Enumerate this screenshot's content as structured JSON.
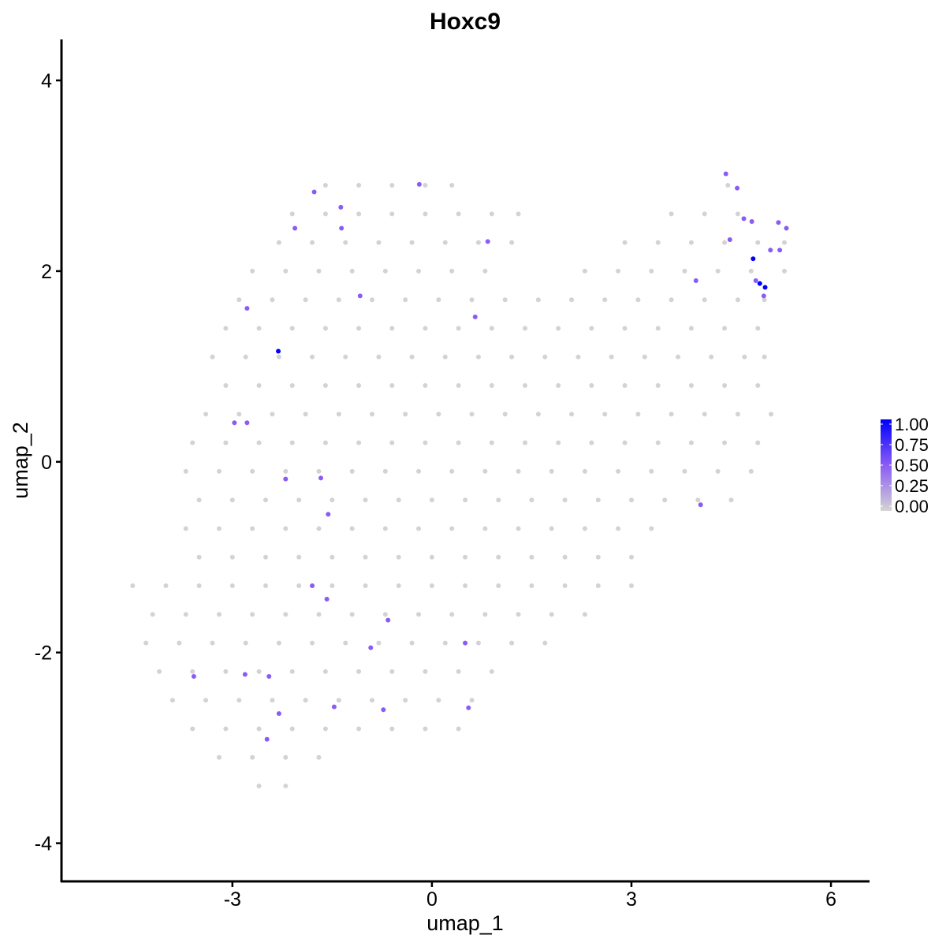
{
  "chart_data": {
    "type": "scatter",
    "title": "Hoxc9",
    "xlabel": "umap_1",
    "ylabel": "umap_2",
    "xlim": [
      -5.57,
      6.58
    ],
    "ylim": [
      -4.4,
      4.43
    ],
    "xticks": [
      -3,
      0,
      3,
      6
    ],
    "yticks": [
      -4,
      -2,
      0,
      2,
      4
    ],
    "xtick_labels": [
      "-3",
      "0",
      "3",
      "6"
    ],
    "ytick_labels": [
      "-4",
      "-2",
      "0",
      "2",
      "4"
    ],
    "grid": false,
    "legend": {
      "placement": "right",
      "type": "colorbar",
      "labels": [
        "1.00",
        "0.75",
        "0.50",
        "0.25",
        "0.00"
      ],
      "range": [
        0,
        1
      ]
    },
    "color_scale": {
      "low": "#D3D3D3",
      "mid": "#8A5CF5",
      "high": "#0000FF"
    },
    "background_point_rows": [
      {
        "y": 2.9,
        "x": [
          -1.6,
          -1.1,
          -0.6,
          -0.1,
          0.3,
          4.45
        ]
      },
      {
        "y": 2.6,
        "x": [
          -2.1,
          -1.6,
          -1.1,
          -0.6,
          -0.1,
          0.4,
          0.9,
          1.3,
          3.6,
          4.1,
          4.6
        ]
      },
      {
        "y": 2.3,
        "x": [
          -2.3,
          -1.8,
          -1.3,
          -0.8,
          -0.3,
          0.2,
          0.7,
          1.2,
          2.9,
          3.4,
          3.9,
          4.4,
          4.9,
          5.3
        ]
      },
      {
        "y": 2.0,
        "x": [
          -2.7,
          -2.2,
          -1.7,
          -1.2,
          -0.7,
          -0.2,
          0.3,
          0.8,
          2.3,
          2.8,
          3.3,
          3.8,
          4.3,
          4.8,
          5.3
        ]
      },
      {
        "y": 1.7,
        "x": [
          -2.9,
          -2.4,
          -1.9,
          -1.4,
          -0.9,
          -0.4,
          0.1,
          0.6,
          1.1,
          1.6,
          2.1,
          2.6,
          3.1,
          3.6,
          4.1,
          4.6,
          5.0
        ]
      },
      {
        "y": 1.4,
        "x": [
          -3.1,
          -2.6,
          -2.1,
          -1.6,
          -1.1,
          -0.6,
          -0.1,
          0.4,
          0.9,
          1.4,
          1.9,
          2.4,
          2.9,
          3.4,
          3.9,
          4.4,
          4.9
        ]
      },
      {
        "y": 1.1,
        "x": [
          -3.3,
          -2.8,
          -2.3,
          -1.8,
          -1.3,
          -0.8,
          -0.3,
          0.2,
          0.7,
          1.2,
          1.7,
          2.2,
          2.7,
          3.2,
          3.7,
          4.2,
          4.7,
          5.0
        ]
      },
      {
        "y": 0.8,
        "x": [
          -3.1,
          -2.6,
          -2.1,
          -1.6,
          -1.1,
          -0.6,
          -0.1,
          0.4,
          0.9,
          1.4,
          1.9,
          2.4,
          2.9,
          3.4,
          3.9,
          4.4,
          4.9
        ]
      },
      {
        "y": 0.5,
        "x": [
          -3.4,
          -2.9,
          -2.4,
          -1.9,
          -1.4,
          -0.9,
          -0.4,
          0.1,
          0.6,
          1.1,
          1.6,
          2.1,
          2.6,
          3.1,
          3.6,
          4.1,
          4.6,
          5.1
        ]
      },
      {
        "y": 0.2,
        "x": [
          -3.6,
          -3.1,
          -2.6,
          -2.1,
          -1.6,
          -1.1,
          -0.6,
          -0.1,
          0.4,
          0.9,
          1.4,
          1.9,
          2.4,
          2.9,
          3.4,
          3.9,
          4.4,
          4.9
        ]
      },
      {
        "y": -0.1,
        "x": [
          -3.7,
          -3.2,
          -2.7,
          -2.2,
          -1.7,
          -1.2,
          -0.7,
          -0.2,
          0.3,
          0.8,
          1.3,
          1.8,
          2.3,
          2.8,
          3.3,
          3.8,
          4.3,
          4.8
        ]
      },
      {
        "y": -0.4,
        "x": [
          -3.5,
          -3.0,
          -2.5,
          -2.0,
          -1.5,
          -1.0,
          -0.5,
          0.0,
          0.5,
          1.0,
          1.5,
          2.0,
          2.5,
          3.0,
          3.5,
          4.0,
          4.5
        ]
      },
      {
        "y": -0.7,
        "x": [
          -3.7,
          -3.2,
          -2.7,
          -2.2,
          -1.7,
          -1.2,
          -0.7,
          -0.2,
          0.3,
          0.8,
          1.3,
          1.8,
          2.3,
          2.8,
          3.3
        ]
      },
      {
        "y": -1.0,
        "x": [
          -3.5,
          -3.0,
          -2.5,
          -2.0,
          -1.5,
          -1.0,
          -0.5,
          0.0,
          0.5,
          1.0,
          1.5,
          2.0,
          2.5,
          3.0
        ]
      },
      {
        "y": -1.3,
        "x": [
          -4.5,
          -4.0,
          -3.5,
          -3.0,
          -2.5,
          -2.0,
          -1.5,
          -1.0,
          -0.5,
          0.0,
          0.5,
          1.0,
          1.5,
          2.0,
          2.5,
          3.0
        ]
      },
      {
        "y": -1.6,
        "x": [
          -4.2,
          -3.7,
          -3.2,
          -2.7,
          -2.2,
          -1.7,
          -1.2,
          -0.7,
          -0.2,
          0.3,
          0.8,
          1.3,
          1.8,
          2.3
        ]
      },
      {
        "y": -1.9,
        "x": [
          -4.3,
          -3.8,
          -3.3,
          -2.8,
          -2.3,
          -1.8,
          -1.3,
          -0.8,
          -0.3,
          0.2,
          0.7,
          1.2,
          1.7
        ]
      },
      {
        "y": -2.2,
        "x": [
          -4.1,
          -3.6,
          -3.1,
          -2.6,
          -2.1,
          -1.6,
          -1.1,
          -0.6,
          -0.1,
          0.4,
          0.9
        ]
      },
      {
        "y": -2.5,
        "x": [
          -3.9,
          -3.4,
          -2.9,
          -2.4,
          -1.9,
          -1.4,
          -0.9,
          -0.4,
          0.1,
          0.6
        ]
      },
      {
        "y": -2.8,
        "x": [
          -3.6,
          -3.1,
          -2.6,
          -2.1,
          -1.6,
          -1.1,
          -0.6,
          -0.1,
          0.4
        ]
      },
      {
        "y": -3.1,
        "x": [
          -3.2,
          -2.7,
          -2.2,
          -1.7
        ]
      },
      {
        "y": -3.4,
        "x": [
          -2.6,
          -2.2
        ]
      }
    ],
    "expressing_points": [
      {
        "x": -1.77,
        "y": 2.83,
        "value": 0.5
      },
      {
        "x": -1.37,
        "y": 2.67,
        "value": 0.5
      },
      {
        "x": -1.36,
        "y": 2.45,
        "value": 0.5
      },
      {
        "x": -2.06,
        "y": 2.45,
        "value": 0.5
      },
      {
        "x": -0.19,
        "y": 2.91,
        "value": 0.5
      },
      {
        "x": 0.84,
        "y": 2.31,
        "value": 0.5
      },
      {
        "x": -1.08,
        "y": 1.74,
        "value": 0.5
      },
      {
        "x": -2.78,
        "y": 1.61,
        "value": 0.5
      },
      {
        "x": 0.65,
        "y": 1.52,
        "value": 0.5
      },
      {
        "x": -2.31,
        "y": 1.16,
        "value": 1.0
      },
      {
        "x": -2.97,
        "y": 0.41,
        "value": 0.5
      },
      {
        "x": -2.78,
        "y": 0.41,
        "value": 0.5
      },
      {
        "x": -2.2,
        "y": -0.18,
        "value": 0.5
      },
      {
        "x": -1.67,
        "y": -0.17,
        "value": 0.5
      },
      {
        "x": -1.56,
        "y": -0.55,
        "value": 0.5
      },
      {
        "x": 4.04,
        "y": -0.45,
        "value": 0.5
      },
      {
        "x": -1.8,
        "y": -1.3,
        "value": 0.5
      },
      {
        "x": -1.58,
        "y": -1.44,
        "value": 0.5
      },
      {
        "x": -0.66,
        "y": -1.66,
        "value": 0.5
      },
      {
        "x": -0.92,
        "y": -1.95,
        "value": 0.5
      },
      {
        "x": 0.5,
        "y": -1.9,
        "value": 0.5
      },
      {
        "x": -3.58,
        "y": -2.25,
        "value": 0.5
      },
      {
        "x": -2.81,
        "y": -2.23,
        "value": 0.5
      },
      {
        "x": -2.45,
        "y": -2.25,
        "value": 0.5
      },
      {
        "x": -1.47,
        "y": -2.57,
        "value": 0.5
      },
      {
        "x": -0.73,
        "y": -2.6,
        "value": 0.5
      },
      {
        "x": 0.55,
        "y": -2.58,
        "value": 0.5
      },
      {
        "x": -2.3,
        "y": -2.64,
        "value": 0.5
      },
      {
        "x": -2.48,
        "y": -2.91,
        "value": 0.5
      },
      {
        "x": 4.42,
        "y": 3.02,
        "value": 0.5
      },
      {
        "x": 4.59,
        "y": 2.87,
        "value": 0.5
      },
      {
        "x": 4.69,
        "y": 2.55,
        "value": 0.5
      },
      {
        "x": 4.81,
        "y": 2.52,
        "value": 0.5
      },
      {
        "x": 5.21,
        "y": 2.51,
        "value": 0.5
      },
      {
        "x": 5.33,
        "y": 2.45,
        "value": 0.5
      },
      {
        "x": 4.48,
        "y": 2.33,
        "value": 0.5
      },
      {
        "x": 5.09,
        "y": 2.22,
        "value": 0.5
      },
      {
        "x": 5.23,
        "y": 2.22,
        "value": 0.5
      },
      {
        "x": 4.83,
        "y": 2.13,
        "value": 1.0
      },
      {
        "x": 3.97,
        "y": 1.9,
        "value": 0.5
      },
      {
        "x": 4.87,
        "y": 1.9,
        "value": 0.5
      },
      {
        "x": 4.93,
        "y": 1.87,
        "value": 1.0
      },
      {
        "x": 5.01,
        "y": 1.83,
        "value": 1.0
      },
      {
        "x": 4.99,
        "y": 1.74,
        "value": 0.5
      }
    ]
  }
}
